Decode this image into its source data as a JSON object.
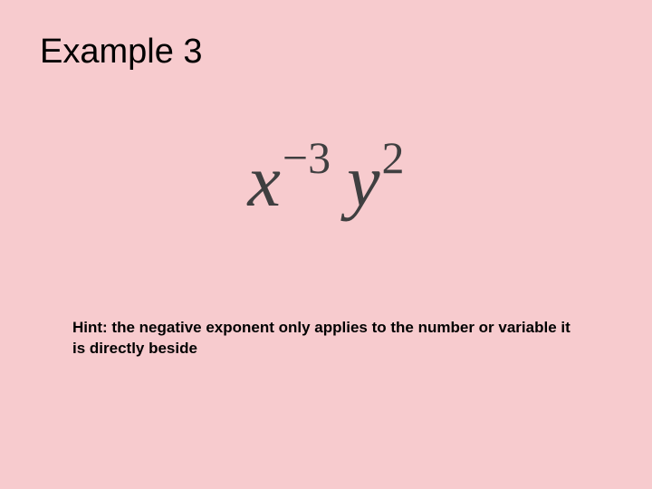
{
  "slide": {
    "title": "Example 3",
    "background_color": "#f7cbce",
    "title_fontsize": 38,
    "title_color": "#000000",
    "math": {
      "base1": "x",
      "exp1": "−3",
      "base2": "y",
      "exp2": "2",
      "font_family": "Times New Roman",
      "base_fontsize": 82,
      "exp_fontsize": 50,
      "color": "#3f3f40"
    },
    "hint": "Hint:  the negative exponent only applies to the number or variable it is directly beside",
    "hint_fontsize": 17,
    "hint_color": "#000000"
  }
}
